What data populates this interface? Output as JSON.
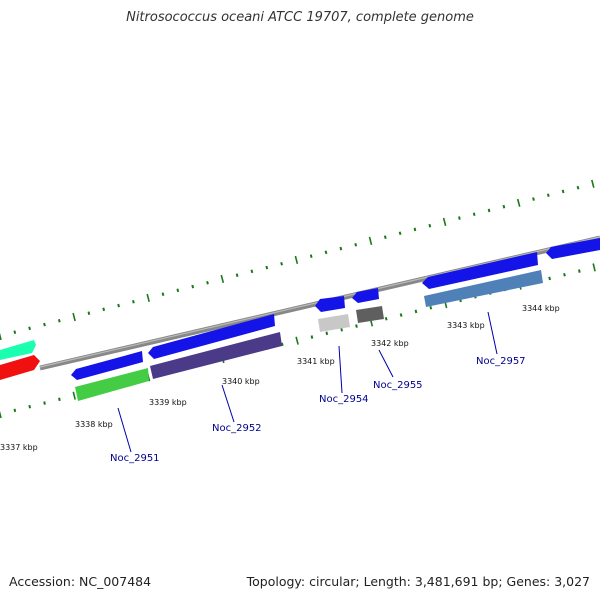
{
  "title": "Nitrosococcus oceani ATCC 19707, complete genome",
  "footer": {
    "accession": "Accession: NC_007484",
    "topology": "Topology: circular; Length: 3,481,691 bp; Genes: 3,027"
  },
  "kbp_labels": [
    "3337 kbp",
    "3338 kbp",
    "3339 kbp",
    "3340 kbp",
    "3341 kbp",
    "3342 kbp",
    "3343 kbp",
    "3344 kbp"
  ],
  "gene_labels": [
    "Noc_2951",
    "Noc_2952",
    "Noc_2954",
    "Noc_2955",
    "Noc_2957"
  ],
  "colors": {
    "forward": "#1010e8",
    "backbone": "#808080",
    "tick": "#1a7a1a",
    "label_blue": "#00008b",
    "teal": "#1affb0",
    "red": "#f01010",
    "green": "#40cc40",
    "purple": "#4a3a88",
    "light_gray": "#cccccc",
    "dark_gray": "#666666",
    "steel_blue": "#4f80b8"
  }
}
